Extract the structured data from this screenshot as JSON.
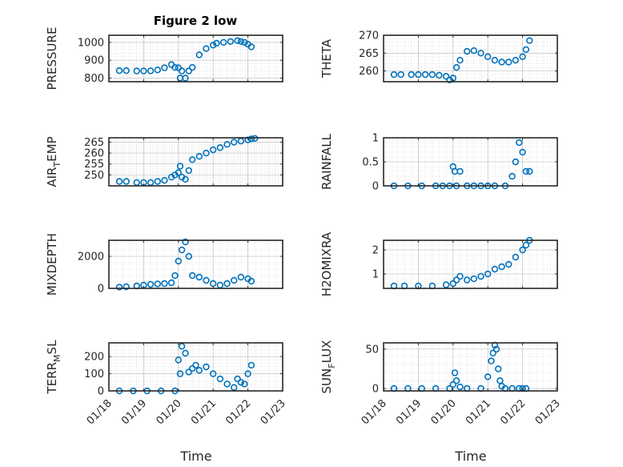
{
  "figure": {
    "title": "Figure 2 low",
    "xlabel": "Time",
    "xticks": [
      "01/18",
      "01/19",
      "01/20",
      "01/21",
      "01/22",
      "01/23"
    ]
  },
  "chart_data": [
    {
      "type": "scatter",
      "title": "Figure 2 low",
      "ylabel": {
        "main": "PRESSURE"
      },
      "xlim": [
        18,
        23
      ],
      "ylim": [
        780,
        1040
      ],
      "yticks": [
        800,
        900,
        1000
      ],
      "grid": "on",
      "x": [
        18.3,
        18.5,
        18.8,
        19,
        19.2,
        19.4,
        19.6,
        19.8,
        19.9,
        20,
        20.05,
        20.1,
        20.2,
        20.3,
        20.4,
        20.6,
        20.8,
        21,
        21.1,
        21.3,
        21.5,
        21.7,
        21.8,
        21.9,
        22,
        22.1
      ],
      "y": [
        842,
        842,
        840,
        840,
        841,
        846,
        858,
        876,
        860,
        858,
        800,
        840,
        800,
        840,
        860,
        930,
        965,
        985,
        995,
        1000,
        1005,
        1010,
        1005,
        1000,
        990,
        975
      ]
    },
    {
      "type": "scatter",
      "ylabel": {
        "main": "THETA"
      },
      "xlim": [
        18,
        23
      ],
      "ylim": [
        257,
        270
      ],
      "yticks": [
        260,
        265,
        270
      ],
      "grid": "on",
      "x": [
        18.3,
        18.5,
        18.8,
        19,
        19.2,
        19.4,
        19.6,
        19.8,
        19.9,
        20,
        20.1,
        20.2,
        20.4,
        20.6,
        20.8,
        21,
        21.2,
        21.4,
        21.6,
        21.8,
        22,
        22.1,
        22.2
      ],
      "y": [
        259,
        259,
        259,
        259,
        259,
        259,
        258.8,
        258.5,
        257.5,
        258,
        261,
        263,
        265.5,
        265.7,
        265,
        264,
        263,
        262.5,
        262.5,
        263,
        264,
        266,
        268.5
      ]
    },
    {
      "type": "scatter",
      "ylabel": {
        "main": "AIR",
        "sub": "T",
        "after": "EMP"
      },
      "xlim": [
        18,
        23
      ],
      "ylim": [
        245,
        267
      ],
      "yticks": [
        250,
        255,
        260,
        265
      ],
      "grid": "on",
      "x": [
        18.3,
        18.5,
        18.8,
        19,
        19.2,
        19.4,
        19.6,
        19.8,
        19.9,
        20,
        20.05,
        20.1,
        20.2,
        20.3,
        20.4,
        20.6,
        20.8,
        21,
        21.2,
        21.4,
        21.6,
        21.8,
        22,
        22.1,
        22.2
      ],
      "y": [
        247,
        247,
        246.5,
        246.5,
        246.5,
        247,
        247.5,
        249,
        250,
        251,
        254,
        249,
        248,
        252,
        257,
        258.5,
        260,
        261.5,
        262.5,
        264,
        265,
        265.5,
        266,
        266.5,
        266.7
      ]
    },
    {
      "type": "scatter",
      "ylabel": {
        "main": "RAINFALL"
      },
      "xlim": [
        18,
        23
      ],
      "ylim": [
        0,
        1
      ],
      "yticks": [
        0,
        0.5,
        1
      ],
      "grid": "on",
      "x": [
        18.3,
        18.7,
        19.1,
        19.5,
        19.7,
        19.9,
        20,
        20.05,
        20.1,
        20.2,
        20.4,
        20.6,
        20.8,
        21,
        21.2,
        21.5,
        21.7,
        21.8,
        21.9,
        22,
        22.1,
        22.2
      ],
      "y": [
        0,
        0,
        0,
        0,
        0,
        0,
        0.4,
        0.3,
        0,
        0.3,
        0,
        0,
        0,
        0,
        0,
        0,
        0.2,
        0.5,
        0.9,
        0.7,
        0.3,
        0.3
      ]
    },
    {
      "type": "scatter",
      "ylabel": {
        "main": "MIXDEPTH"
      },
      "xlim": [
        18,
        23
      ],
      "ylim": [
        0,
        3000
      ],
      "yticks": [
        0,
        2000
      ],
      "grid": "on",
      "x": [
        18.3,
        18.5,
        18.8,
        19,
        19.2,
        19.4,
        19.6,
        19.8,
        19.9,
        20,
        20.1,
        20.2,
        20.3,
        20.4,
        20.6,
        20.8,
        21,
        21.2,
        21.4,
        21.6,
        21.8,
        22,
        22.1
      ],
      "y": [
        80,
        100,
        150,
        200,
        250,
        280,
        300,
        350,
        800,
        1700,
        2400,
        2900,
        2000,
        800,
        700,
        500,
        300,
        200,
        300,
        500,
        700,
        600,
        450
      ]
    },
    {
      "type": "scatter",
      "ylabel": {
        "main": "H2OMIXRA"
      },
      "xlim": [
        18,
        23
      ],
      "ylim": [
        0.4,
        2.4
      ],
      "yticks": [
        1,
        2
      ],
      "grid": "on",
      "x": [
        18.3,
        18.6,
        19,
        19.4,
        19.8,
        20,
        20.1,
        20.2,
        20.4,
        20.6,
        20.8,
        21,
        21.2,
        21.4,
        21.6,
        21.8,
        22,
        22.1,
        22.2
      ],
      "y": [
        0.5,
        0.5,
        0.5,
        0.5,
        0.55,
        0.6,
        0.75,
        0.9,
        0.75,
        0.8,
        0.9,
        1,
        1.2,
        1.3,
        1.4,
        1.7,
        2,
        2.2,
        2.4
      ]
    },
    {
      "type": "scatter",
      "ylabel": {
        "main": "TERR",
        "sub": "M",
        "after": "SL"
      },
      "xlim": [
        18,
        23
      ],
      "ylim": [
        0,
        280
      ],
      "yticks": [
        0,
        100,
        200
      ],
      "grid": "on",
      "x": [
        18.3,
        18.7,
        19.1,
        19.5,
        19.9,
        20,
        20.05,
        20.1,
        20.2,
        20.3,
        20.4,
        20.5,
        20.6,
        20.8,
        21,
        21.2,
        21.4,
        21.6,
        21.7,
        21.8,
        21.9,
        22,
        22.1
      ],
      "y": [
        0,
        0,
        0,
        0,
        0,
        180,
        100,
        260,
        220,
        110,
        130,
        150,
        120,
        140,
        100,
        70,
        40,
        20,
        70,
        50,
        40,
        100,
        150
      ]
    },
    {
      "type": "scatter",
      "ylabel": {
        "main": "SUN",
        "sub": "F",
        "after": "LUX"
      },
      "xlim": [
        18,
        23
      ],
      "ylim": [
        -3,
        58
      ],
      "yticks": [
        0,
        50
      ],
      "grid": "on",
      "x": [
        18.3,
        18.7,
        19.1,
        19.5,
        19.9,
        20,
        20.05,
        20.1,
        20.2,
        20.4,
        20.8,
        21,
        21.1,
        21.15,
        21.2,
        21.25,
        21.3,
        21.35,
        21.4,
        21.5,
        21.7,
        21.9,
        22,
        22.1
      ],
      "y": [
        0,
        0,
        0,
        0,
        0,
        5,
        20,
        10,
        2,
        0,
        0,
        15,
        35,
        45,
        55,
        50,
        25,
        10,
        3,
        0,
        0,
        0,
        0,
        0
      ]
    }
  ]
}
